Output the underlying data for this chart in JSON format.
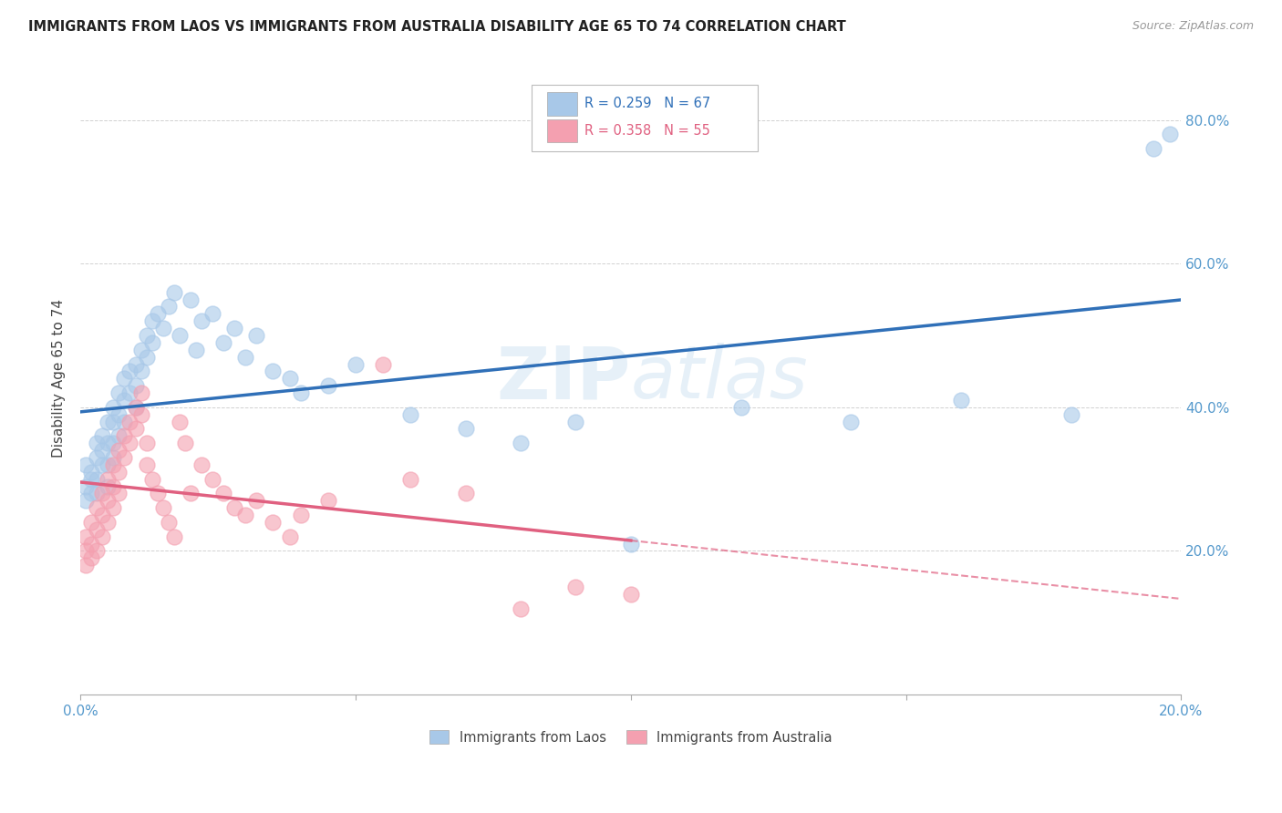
{
  "title": "IMMIGRANTS FROM LAOS VS IMMIGRANTS FROM AUSTRALIA DISABILITY AGE 65 TO 74 CORRELATION CHART",
  "source": "Source: ZipAtlas.com",
  "ylabel": "Disability Age 65 to 74",
  "xlim": [
    0.0,
    0.2
  ],
  "ylim": [
    0.0,
    0.88
  ],
  "yticks": [
    0.2,
    0.4,
    0.6,
    0.8
  ],
  "xtick_labels": [
    "0.0%",
    "20.0%"
  ],
  "ytick_labels": [
    "20.0%",
    "40.0%",
    "60.0%",
    "80.0%"
  ],
  "legend_r1": "R = 0.259",
  "legend_n1": "N = 67",
  "legend_r2": "R = 0.358",
  "legend_n2": "N = 55",
  "color_laos": "#a8c8e8",
  "color_australia": "#f4a0b0",
  "color_laos_line": "#3070b8",
  "color_australia_line": "#e06080",
  "watermark": "ZIPatlas",
  "laos_x": [
    0.001,
    0.001,
    0.001,
    0.002,
    0.002,
    0.002,
    0.003,
    0.003,
    0.003,
    0.003,
    0.004,
    0.004,
    0.004,
    0.005,
    0.005,
    0.005,
    0.005,
    0.006,
    0.006,
    0.006,
    0.006,
    0.007,
    0.007,
    0.007,
    0.008,
    0.008,
    0.008,
    0.009,
    0.009,
    0.01,
    0.01,
    0.01,
    0.011,
    0.011,
    0.012,
    0.012,
    0.013,
    0.013,
    0.014,
    0.015,
    0.016,
    0.017,
    0.018,
    0.02,
    0.021,
    0.022,
    0.024,
    0.026,
    0.028,
    0.03,
    0.032,
    0.035,
    0.038,
    0.04,
    0.045,
    0.05,
    0.06,
    0.07,
    0.08,
    0.09,
    0.1,
    0.12,
    0.14,
    0.16,
    0.18,
    0.195,
    0.198
  ],
  "laos_y": [
    0.32,
    0.29,
    0.27,
    0.3,
    0.28,
    0.31,
    0.35,
    0.33,
    0.3,
    0.28,
    0.36,
    0.34,
    0.32,
    0.38,
    0.35,
    0.32,
    0.29,
    0.4,
    0.38,
    0.35,
    0.33,
    0.42,
    0.39,
    0.36,
    0.44,
    0.41,
    0.38,
    0.45,
    0.42,
    0.46,
    0.43,
    0.4,
    0.48,
    0.45,
    0.5,
    0.47,
    0.52,
    0.49,
    0.53,
    0.51,
    0.54,
    0.56,
    0.5,
    0.55,
    0.48,
    0.52,
    0.53,
    0.49,
    0.51,
    0.47,
    0.5,
    0.45,
    0.44,
    0.42,
    0.43,
    0.46,
    0.39,
    0.37,
    0.35,
    0.38,
    0.21,
    0.4,
    0.38,
    0.41,
    0.39,
    0.76,
    0.78
  ],
  "australia_x": [
    0.001,
    0.001,
    0.001,
    0.002,
    0.002,
    0.002,
    0.003,
    0.003,
    0.003,
    0.004,
    0.004,
    0.004,
    0.005,
    0.005,
    0.005,
    0.006,
    0.006,
    0.006,
    0.007,
    0.007,
    0.007,
    0.008,
    0.008,
    0.009,
    0.009,
    0.01,
    0.01,
    0.011,
    0.011,
    0.012,
    0.012,
    0.013,
    0.014,
    0.015,
    0.016,
    0.017,
    0.018,
    0.019,
    0.02,
    0.022,
    0.024,
    0.026,
    0.028,
    0.03,
    0.032,
    0.035,
    0.038,
    0.04,
    0.045,
    0.055,
    0.06,
    0.07,
    0.08,
    0.09,
    0.1
  ],
  "australia_y": [
    0.22,
    0.2,
    0.18,
    0.24,
    0.21,
    0.19,
    0.26,
    0.23,
    0.2,
    0.28,
    0.25,
    0.22,
    0.3,
    0.27,
    0.24,
    0.32,
    0.29,
    0.26,
    0.34,
    0.31,
    0.28,
    0.36,
    0.33,
    0.38,
    0.35,
    0.4,
    0.37,
    0.42,
    0.39,
    0.35,
    0.32,
    0.3,
    0.28,
    0.26,
    0.24,
    0.22,
    0.38,
    0.35,
    0.28,
    0.32,
    0.3,
    0.28,
    0.26,
    0.25,
    0.27,
    0.24,
    0.22,
    0.25,
    0.27,
    0.46,
    0.3,
    0.28,
    0.12,
    0.15,
    0.14
  ]
}
